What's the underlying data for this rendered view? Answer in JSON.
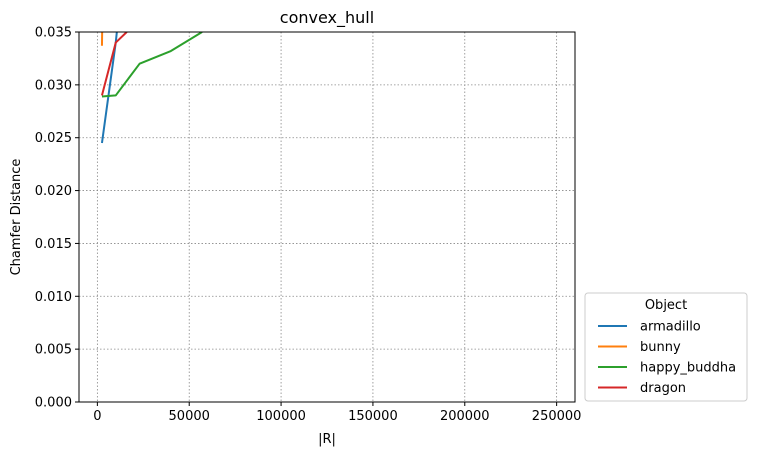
{
  "chart_data": {
    "type": "line",
    "title": "convex_hull",
    "xlabel": "|R|",
    "ylabel": "Chamfer Distance",
    "xlim": [
      -10000,
      260000
    ],
    "ylim": [
      0.0,
      0.035
    ],
    "xticks": [
      0,
      50000,
      100000,
      150000,
      200000,
      250000
    ],
    "xtick_labels": [
      "0",
      "50000",
      "100000",
      "150000",
      "200000",
      "250000"
    ],
    "yticks": [
      0.0,
      0.005,
      0.01,
      0.015,
      0.02,
      0.025,
      0.03,
      0.035
    ],
    "ytick_labels": [
      "0.000",
      "0.005",
      "0.010",
      "0.015",
      "0.020",
      "0.025",
      "0.030",
      "0.035"
    ],
    "grid": true,
    "legend_title": "Object",
    "legend_placement": "outside-lower-right",
    "series": [
      {
        "name": "armadillo",
        "color": "#1f77b4",
        "x": [
          2500,
          10000,
          10600
        ],
        "y": [
          0.0245,
          0.034,
          0.035
        ]
      },
      {
        "name": "bunny",
        "color": "#ff7f0e",
        "x": [
          2500,
          2600
        ],
        "y": [
          0.0337,
          0.035
        ]
      },
      {
        "name": "happy_buddha",
        "color": "#2ca02c",
        "x": [
          2500,
          10000,
          23000,
          40000,
          57000
        ],
        "y": [
          0.0289,
          0.029,
          0.032,
          0.0332,
          0.035
        ]
      },
      {
        "name": "dragon",
        "color": "#d62728",
        "x": [
          2500,
          10000,
          16000
        ],
        "y": [
          0.029,
          0.034,
          0.035
        ]
      }
    ]
  }
}
